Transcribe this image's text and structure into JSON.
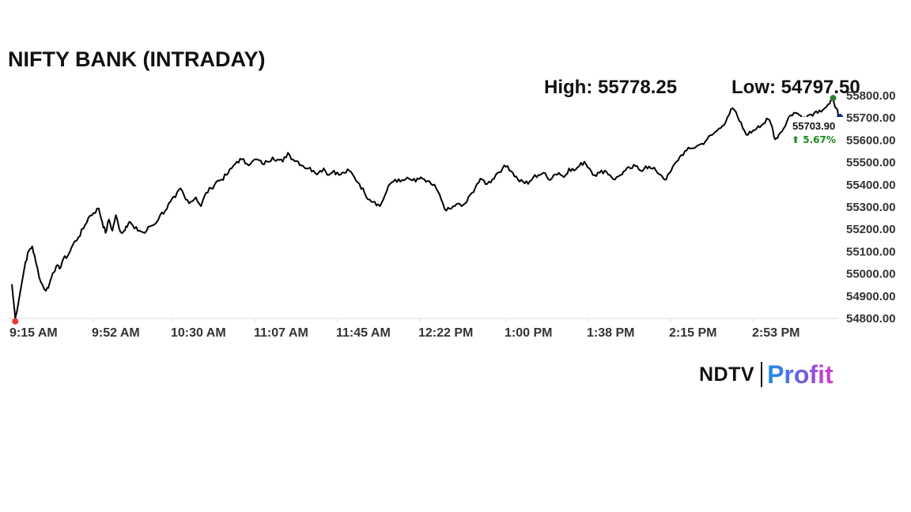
{
  "header": {
    "title": "NIFTY BANK (INTRADAY)",
    "high_text": "High: 55778.25",
    "low_text": "Low: 54797.50"
  },
  "logo": {
    "part1": "NDTV",
    "part2": "Profit"
  },
  "colors": {
    "line": "#000000",
    "high_marker": "#2e7d32",
    "low_marker": "#e53935",
    "last_marker": "#1a237e",
    "change_up": "#1b8a1b",
    "axis": "#dddddd"
  },
  "chart_data": {
    "type": "line",
    "title": "NIFTY BANK (INTRADAY)",
    "xlabel": "",
    "ylabel": "",
    "ylim": [
      54800,
      55800
    ],
    "y_ticks": [
      "54800.00",
      "54900.00",
      "55000.00",
      "55100.00",
      "55200.00",
      "55300.00",
      "55400.00",
      "55500.00",
      "55600.00",
      "55700.00",
      "55800.00"
    ],
    "x_ticks": [
      "9:15 AM",
      "9:52 AM",
      "10:30 AM",
      "11:07 AM",
      "11:45 AM",
      "12:22 PM",
      "1:00 PM",
      "1:38 PM",
      "2:15 PM",
      "2:53 PM"
    ],
    "high": 55778.25,
    "low": 54797.5,
    "last_value": "55703.90",
    "change": "⬆ 5.67%",
    "series": [
      {
        "values": [
          [
            0,
            54950
          ],
          [
            2,
            54797.5
          ],
          [
            5,
            54920
          ],
          [
            8,
            55050
          ],
          [
            10,
            55100
          ],
          [
            12,
            55120
          ],
          [
            14,
            55050
          ],
          [
            17,
            54960
          ],
          [
            20,
            54920
          ],
          [
            22,
            54950
          ],
          [
            24,
            55000
          ],
          [
            26,
            55030
          ],
          [
            28,
            55020
          ],
          [
            30,
            55060
          ],
          [
            33,
            55080
          ],
          [
            36,
            55130
          ],
          [
            39,
            55160
          ],
          [
            42,
            55200
          ],
          [
            45,
            55250
          ],
          [
            48,
            55270
          ],
          [
            51,
            55290
          ],
          [
            53,
            55230
          ],
          [
            55,
            55180
          ],
          [
            57,
            55240
          ],
          [
            59,
            55190
          ],
          [
            61,
            55260
          ],
          [
            63,
            55200
          ],
          [
            65,
            55180
          ],
          [
            67,
            55210
          ],
          [
            69,
            55230
          ],
          [
            72,
            55200
          ],
          [
            75,
            55190
          ],
          [
            78,
            55180
          ],
          [
            81,
            55210
          ],
          [
            84,
            55220
          ],
          [
            87,
            55260
          ],
          [
            90,
            55280
          ],
          [
            93,
            55320
          ],
          [
            96,
            55340
          ],
          [
            99,
            55380
          ],
          [
            102,
            55330
          ],
          [
            105,
            55320
          ],
          [
            108,
            55340
          ],
          [
            111,
            55300
          ],
          [
            114,
            55360
          ],
          [
            117,
            55380
          ],
          [
            120,
            55410
          ],
          [
            123,
            55420
          ],
          [
            126,
            55440
          ],
          [
            129,
            55470
          ],
          [
            132,
            55500
          ],
          [
            135,
            55510
          ],
          [
            138,
            55490
          ],
          [
            141,
            55500
          ],
          [
            144,
            55510
          ],
          [
            147,
            55490
          ],
          [
            150,
            55500
          ],
          [
            153,
            55520
          ],
          [
            156,
            55510
          ],
          [
            159,
            55500
          ],
          [
            162,
            55540
          ],
          [
            165,
            55510
          ],
          [
            168,
            55500
          ],
          [
            171,
            55480
          ],
          [
            174,
            55470
          ],
          [
            177,
            55460
          ],
          [
            180,
            55450
          ],
          [
            183,
            55470
          ],
          [
            186,
            55440
          ],
          [
            189,
            55460
          ],
          [
            192,
            55440
          ],
          [
            195,
            55450
          ],
          [
            198,
            55460
          ],
          [
            201,
            55430
          ],
          [
            204,
            55400
          ],
          [
            207,
            55360
          ],
          [
            210,
            55330
          ],
          [
            213,
            55320
          ],
          [
            216,
            55300
          ],
          [
            219,
            55350
          ],
          [
            222,
            55400
          ],
          [
            225,
            55420
          ],
          [
            228,
            55410
          ],
          [
            231,
            55420
          ],
          [
            234,
            55420
          ],
          [
            237,
            55410
          ],
          [
            240,
            55430
          ],
          [
            243,
            55410
          ],
          [
            246,
            55400
          ],
          [
            249,
            55380
          ],
          [
            252,
            55330
          ],
          [
            255,
            55280
          ],
          [
            258,
            55290
          ],
          [
            261,
            55310
          ],
          [
            264,
            55300
          ],
          [
            267,
            55320
          ],
          [
            270,
            55360
          ],
          [
            273,
            55400
          ],
          [
            276,
            55420
          ],
          [
            279,
            55400
          ],
          [
            282,
            55420
          ],
          [
            285,
            55450
          ],
          [
            288,
            55470
          ],
          [
            291,
            55480
          ],
          [
            294,
            55450
          ],
          [
            297,
            55420
          ],
          [
            300,
            55410
          ],
          [
            303,
            55400
          ],
          [
            306,
            55430
          ],
          [
            309,
            55440
          ],
          [
            312,
            55450
          ],
          [
            315,
            55420
          ],
          [
            318,
            55440
          ],
          [
            321,
            55450
          ],
          [
            324,
            55430
          ],
          [
            327,
            55470
          ],
          [
            330,
            55460
          ],
          [
            333,
            55480
          ],
          [
            336,
            55500
          ],
          [
            339,
            55470
          ],
          [
            342,
            55440
          ],
          [
            345,
            55450
          ],
          [
            348,
            55460
          ],
          [
            351,
            55440
          ],
          [
            354,
            55420
          ],
          [
            357,
            55440
          ],
          [
            360,
            55460
          ],
          [
            363,
            55470
          ],
          [
            366,
            55480
          ],
          [
            369,
            55460
          ],
          [
            372,
            55480
          ],
          [
            375,
            55470
          ],
          [
            378,
            55460
          ],
          [
            381,
            55440
          ],
          [
            384,
            55420
          ],
          [
            387,
            55460
          ],
          [
            390,
            55500
          ],
          [
            393,
            55530
          ],
          [
            396,
            55550
          ],
          [
            399,
            55560
          ],
          [
            402,
            55570
          ],
          [
            405,
            55580
          ],
          [
            408,
            55600
          ],
          [
            411,
            55620
          ],
          [
            414,
            55640
          ],
          [
            417,
            55660
          ],
          [
            420,
            55700
          ],
          [
            423,
            55740
          ],
          [
            426,
            55700
          ],
          [
            429,
            55650
          ],
          [
            432,
            55620
          ],
          [
            435,
            55640
          ],
          [
            438,
            55660
          ],
          [
            441,
            55670
          ],
          [
            444,
            55690
          ],
          [
            446,
            55660
          ],
          [
            448,
            55600
          ],
          [
            450,
            55620
          ],
          [
            453,
            55650
          ],
          [
            456,
            55700
          ],
          [
            459,
            55720
          ],
          [
            462,
            55710
          ],
          [
            465,
            55700
          ],
          [
            468,
            55710
          ],
          [
            471,
            55720
          ],
          [
            474,
            55730
          ],
          [
            477,
            55740
          ],
          [
            480,
            55760
          ],
          [
            482,
            55778.25
          ],
          [
            484,
            55740
          ],
          [
            485,
            55703.9
          ]
        ]
      }
    ],
    "grid": false,
    "legend": "none"
  }
}
